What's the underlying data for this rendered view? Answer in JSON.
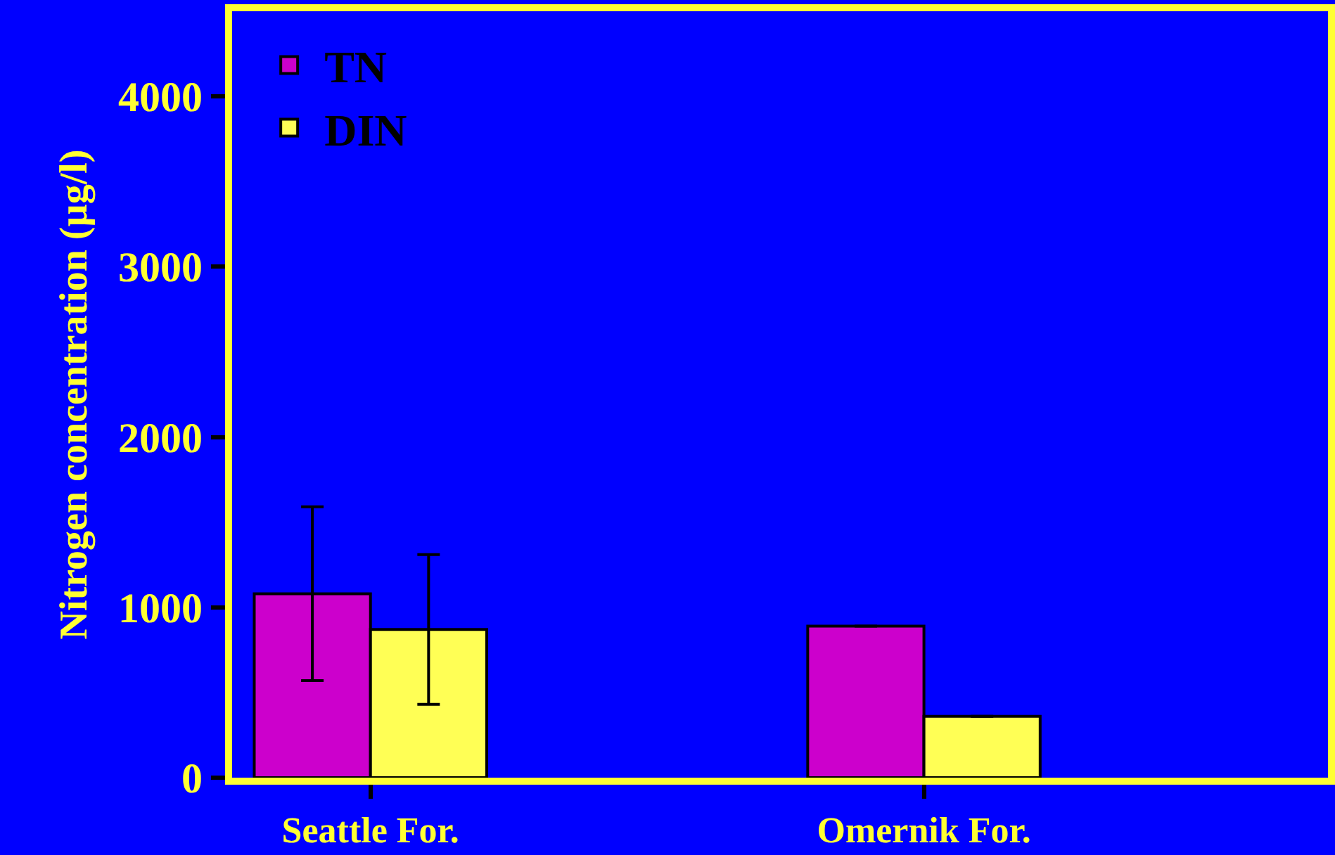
{
  "chart_data": {
    "type": "bar",
    "ylabel": "Nitrogen concentration (µg/l)",
    "categories": [
      "Seattle For.",
      "Omernik For."
    ],
    "series": [
      {
        "name": "TN",
        "color": "#cc00cc",
        "values": [
          1080,
          890
        ],
        "errors": [
          510,
          null
        ]
      },
      {
        "name": "DIN",
        "color": "#ffff55",
        "values": [
          870,
          360
        ],
        "errors": [
          440,
          null
        ]
      }
    ],
    "ylim": [
      0,
      4500
    ],
    "yticks": [
      0,
      1000,
      2000,
      3000,
      4000
    ],
    "grid": false,
    "legend": "top left"
  }
}
